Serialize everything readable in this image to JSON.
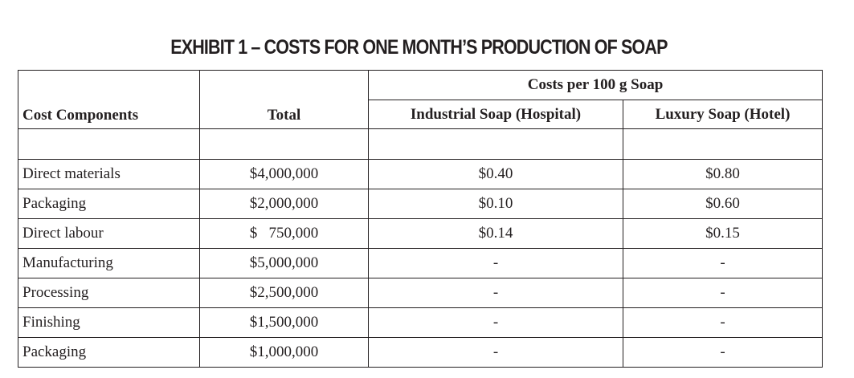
{
  "title": "EXHIBIT 1 – COSTS FOR ONE MONTH’S PRODUCTION OF SOAP",
  "headers": {
    "cost_components": "Cost Components",
    "total": "Total",
    "group": "Costs per 100 g Soap",
    "industrial": "Industrial Soap (Hospital)",
    "luxury": "Luxury Soap (Hotel)"
  },
  "rows": [
    {
      "component": "Direct materials",
      "total": "$4,000,000",
      "industrial": "$0.40",
      "luxury": "$0.80"
    },
    {
      "component": "Packaging",
      "total": "$2,000,000",
      "industrial": "$0.10",
      "luxury": "$0.60"
    },
    {
      "component": "Direct labour",
      "total": "$   750,000",
      "industrial": "$0.14",
      "luxury": "$0.15"
    },
    {
      "component": "Manufacturing",
      "total": "$5,000,000",
      "industrial": "-",
      "luxury": "-"
    },
    {
      "component": "Processing",
      "total": "$2,500,000",
      "industrial": "-",
      "luxury": "-"
    },
    {
      "component": "Finishing",
      "total": "$1,500,000",
      "industrial": "-",
      "luxury": "-"
    },
    {
      "component": "Packaging",
      "total": "$1,000,000",
      "industrial": "-",
      "luxury": "-"
    }
  ]
}
